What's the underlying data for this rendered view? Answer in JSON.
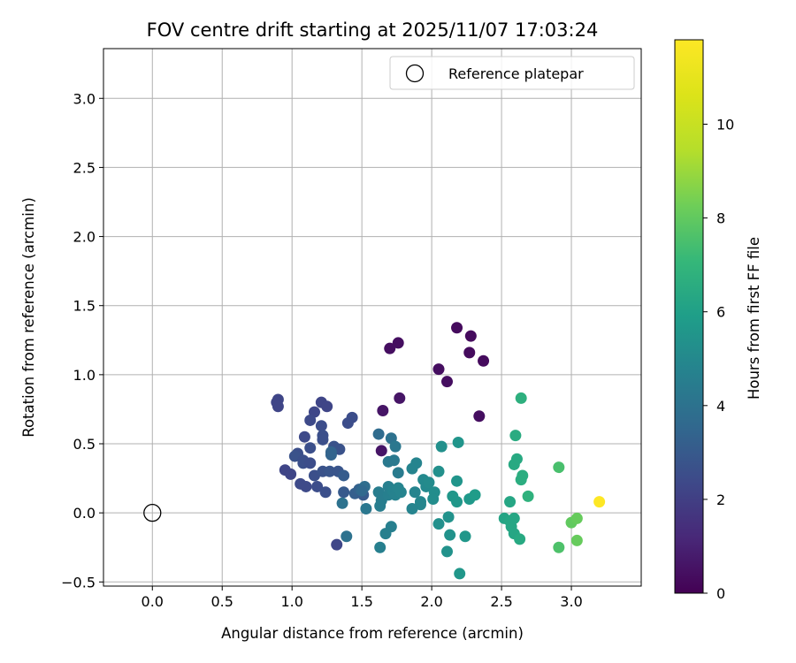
{
  "chart_data": {
    "type": "scatter",
    "title": "FOV centre drift starting at 2025/11/07 17:03:24",
    "xlabel": "Angular distance from reference (arcmin)",
    "ylabel": "Rotation from reference (arcmin)",
    "xlim": [
      -0.35,
      3.5
    ],
    "ylim": [
      -0.53,
      3.36
    ],
    "xticks": [
      0.0,
      0.5,
      1.0,
      1.5,
      2.0,
      2.5,
      3.0
    ],
    "xtick_labels": [
      "0.0",
      "0.5",
      "1.0",
      "1.5",
      "2.0",
      "2.5",
      "3.0"
    ],
    "yticks": [
      -0.5,
      0.0,
      0.5,
      1.0,
      1.5,
      2.0,
      2.5,
      3.0
    ],
    "ytick_labels": [
      "−0.5",
      "0.0",
      "0.5",
      "1.0",
      "1.5",
      "2.0",
      "2.5",
      "3.0"
    ],
    "grid": true,
    "legend": {
      "position": "top-right",
      "entries": [
        "Reference platepar"
      ]
    },
    "reference_point": {
      "x": 0.0,
      "y": 0.0,
      "label": "Reference platepar"
    },
    "colorbar": {
      "label": "Hours from first FF file",
      "range": [
        0,
        11.8
      ],
      "ticks": [
        0,
        2,
        4,
        6,
        8,
        10
      ],
      "tick_labels": [
        "0",
        "2",
        "4",
        "6",
        "8",
        "10"
      ],
      "colormap": "viridis"
    },
    "points": [
      {
        "x": 1.7,
        "y": 1.19,
        "c": 0.4
      },
      {
        "x": 1.76,
        "y": 1.23,
        "c": 0.4
      },
      {
        "x": 2.18,
        "y": 1.34,
        "c": 0.3
      },
      {
        "x": 2.28,
        "y": 1.28,
        "c": 0.3
      },
      {
        "x": 2.27,
        "y": 1.16,
        "c": 0.3
      },
      {
        "x": 2.37,
        "y": 1.1,
        "c": 0.3
      },
      {
        "x": 2.05,
        "y": 1.04,
        "c": 0.4
      },
      {
        "x": 2.11,
        "y": 0.95,
        "c": 0.4
      },
      {
        "x": 1.77,
        "y": 0.83,
        "c": 0.6
      },
      {
        "x": 1.65,
        "y": 0.74,
        "c": 0.6
      },
      {
        "x": 2.34,
        "y": 0.7,
        "c": 0.4
      },
      {
        "x": 1.64,
        "y": 0.45,
        "c": 0.6
      },
      {
        "x": 0.9,
        "y": 0.82,
        "c": 2.2
      },
      {
        "x": 0.89,
        "y": 0.8,
        "c": 2.2
      },
      {
        "x": 0.9,
        "y": 0.77,
        "c": 2.2
      },
      {
        "x": 1.21,
        "y": 0.8,
        "c": 2.2
      },
      {
        "x": 1.25,
        "y": 0.77,
        "c": 2.2
      },
      {
        "x": 1.16,
        "y": 0.73,
        "c": 2.3
      },
      {
        "x": 1.13,
        "y": 0.67,
        "c": 2.4
      },
      {
        "x": 1.21,
        "y": 0.63,
        "c": 2.5
      },
      {
        "x": 1.43,
        "y": 0.69,
        "c": 2.5
      },
      {
        "x": 1.4,
        "y": 0.65,
        "c": 2.5
      },
      {
        "x": 1.09,
        "y": 0.55,
        "c": 2.4
      },
      {
        "x": 1.22,
        "y": 0.56,
        "c": 2.6
      },
      {
        "x": 1.22,
        "y": 0.53,
        "c": 2.6
      },
      {
        "x": 1.3,
        "y": 0.48,
        "c": 2.7
      },
      {
        "x": 1.34,
        "y": 0.46,
        "c": 2.7
      },
      {
        "x": 1.13,
        "y": 0.47,
        "c": 2.6
      },
      {
        "x": 1.04,
        "y": 0.43,
        "c": 2.6
      },
      {
        "x": 1.02,
        "y": 0.41,
        "c": 2.7
      },
      {
        "x": 1.08,
        "y": 0.38,
        "c": 2.6
      },
      {
        "x": 1.08,
        "y": 0.36,
        "c": 2.6
      },
      {
        "x": 1.13,
        "y": 0.36,
        "c": 2.5
      },
      {
        "x": 0.95,
        "y": 0.31,
        "c": 2.2
      },
      {
        "x": 0.99,
        "y": 0.28,
        "c": 2.2
      },
      {
        "x": 1.16,
        "y": 0.27,
        "c": 2.6
      },
      {
        "x": 1.22,
        "y": 0.3,
        "c": 2.7
      },
      {
        "x": 1.27,
        "y": 0.3,
        "c": 2.8
      },
      {
        "x": 1.33,
        "y": 0.3,
        "c": 2.8
      },
      {
        "x": 1.06,
        "y": 0.21,
        "c": 2.4
      },
      {
        "x": 1.1,
        "y": 0.19,
        "c": 2.4
      },
      {
        "x": 1.18,
        "y": 0.19,
        "c": 2.5
      },
      {
        "x": 1.24,
        "y": 0.15,
        "c": 2.6
      },
      {
        "x": 1.32,
        "y": -0.23,
        "c": 2.3
      },
      {
        "x": 1.37,
        "y": 0.27,
        "c": 3.1
      },
      {
        "x": 1.37,
        "y": 0.15,
        "c": 3.0
      },
      {
        "x": 1.28,
        "y": 0.44,
        "c": 3.4
      },
      {
        "x": 1.28,
        "y": 0.42,
        "c": 3.4
      },
      {
        "x": 1.45,
        "y": 0.14,
        "c": 3.2
      },
      {
        "x": 1.48,
        "y": 0.17,
        "c": 3.3
      },
      {
        "x": 1.51,
        "y": 0.13,
        "c": 3.0
      },
      {
        "x": 1.52,
        "y": 0.19,
        "c": 3.8
      },
      {
        "x": 1.5,
        "y": 0.16,
        "c": 3.6
      },
      {
        "x": 1.36,
        "y": 0.07,
        "c": 4.0
      },
      {
        "x": 1.53,
        "y": 0.03,
        "c": 4.2
      },
      {
        "x": 1.39,
        "y": -0.17,
        "c": 4.0
      },
      {
        "x": 1.62,
        "y": 0.57,
        "c": 3.7
      },
      {
        "x": 1.71,
        "y": 0.54,
        "c": 4.0
      },
      {
        "x": 1.74,
        "y": 0.48,
        "c": 4.2
      },
      {
        "x": 1.69,
        "y": 0.37,
        "c": 4.3
      },
      {
        "x": 1.73,
        "y": 0.38,
        "c": 4.3
      },
      {
        "x": 1.76,
        "y": 0.29,
        "c": 4.4
      },
      {
        "x": 1.62,
        "y": 0.15,
        "c": 4.5
      },
      {
        "x": 1.64,
        "y": 0.09,
        "c": 4.5
      },
      {
        "x": 1.63,
        "y": 0.05,
        "c": 4.5
      },
      {
        "x": 1.69,
        "y": 0.19,
        "c": 4.6
      },
      {
        "x": 1.69,
        "y": 0.13,
        "c": 4.6
      },
      {
        "x": 1.72,
        "y": 0.16,
        "c": 4.7
      },
      {
        "x": 1.74,
        "y": 0.13,
        "c": 4.7
      },
      {
        "x": 1.76,
        "y": 0.18,
        "c": 4.8
      },
      {
        "x": 1.78,
        "y": 0.15,
        "c": 4.8
      },
      {
        "x": 1.71,
        "y": -0.1,
        "c": 4.6
      },
      {
        "x": 1.67,
        "y": -0.15,
        "c": 4.6
      },
      {
        "x": 1.63,
        "y": -0.25,
        "c": 4.6
      },
      {
        "x": 1.86,
        "y": 0.32,
        "c": 4.8
      },
      {
        "x": 1.89,
        "y": 0.36,
        "c": 4.8
      },
      {
        "x": 1.88,
        "y": 0.15,
        "c": 4.8
      },
      {
        "x": 1.92,
        "y": 0.08,
        "c": 4.9
      },
      {
        "x": 1.92,
        "y": 0.06,
        "c": 4.9
      },
      {
        "x": 1.86,
        "y": 0.03,
        "c": 4.8
      },
      {
        "x": 1.94,
        "y": 0.24,
        "c": 5.0
      },
      {
        "x": 1.96,
        "y": 0.19,
        "c": 5.0
      },
      {
        "x": 1.98,
        "y": 0.22,
        "c": 5.1
      },
      {
        "x": 2.02,
        "y": 0.15,
        "c": 5.2
      },
      {
        "x": 2.01,
        "y": 0.1,
        "c": 5.2
      },
      {
        "x": 2.05,
        "y": 0.3,
        "c": 5.3
      },
      {
        "x": 2.07,
        "y": 0.48,
        "c": 5.3
      },
      {
        "x": 2.19,
        "y": 0.51,
        "c": 5.5
      },
      {
        "x": 2.18,
        "y": 0.23,
        "c": 5.5
      },
      {
        "x": 2.15,
        "y": 0.12,
        "c": 5.6
      },
      {
        "x": 2.18,
        "y": 0.08,
        "c": 5.6
      },
      {
        "x": 2.05,
        "y": -0.08,
        "c": 5.3
      },
      {
        "x": 2.12,
        "y": -0.03,
        "c": 5.4
      },
      {
        "x": 2.13,
        "y": -0.16,
        "c": 5.4
      },
      {
        "x": 2.11,
        "y": -0.28,
        "c": 5.4
      },
      {
        "x": 2.24,
        "y": -0.17,
        "c": 5.6
      },
      {
        "x": 2.2,
        "y": -0.44,
        "c": 5.6
      },
      {
        "x": 2.27,
        "y": 0.1,
        "c": 5.7
      },
      {
        "x": 2.31,
        "y": 0.13,
        "c": 5.8
      },
      {
        "x": 2.52,
        "y": -0.04,
        "c": 6.2
      },
      {
        "x": 2.56,
        "y": -0.06,
        "c": 6.3
      },
      {
        "x": 2.57,
        "y": -0.1,
        "c": 6.3
      },
      {
        "x": 2.59,
        "y": -0.04,
        "c": 6.3
      },
      {
        "x": 2.59,
        "y": -0.15,
        "c": 6.3
      },
      {
        "x": 2.63,
        "y": -0.19,
        "c": 6.4
      },
      {
        "x": 2.56,
        "y": 0.08,
        "c": 6.3
      },
      {
        "x": 2.59,
        "y": 0.35,
        "c": 6.4
      },
      {
        "x": 2.61,
        "y": 0.39,
        "c": 6.4
      },
      {
        "x": 2.6,
        "y": 0.56,
        "c": 6.5
      },
      {
        "x": 2.64,
        "y": 0.83,
        "c": 6.7
      },
      {
        "x": 2.64,
        "y": 0.24,
        "c": 6.6
      },
      {
        "x": 2.65,
        "y": 0.27,
        "c": 6.6
      },
      {
        "x": 2.69,
        "y": 0.12,
        "c": 6.8
      },
      {
        "x": 2.91,
        "y": 0.33,
        "c": 7.5
      },
      {
        "x": 2.91,
        "y": -0.25,
        "c": 7.6
      },
      {
        "x": 3.0,
        "y": -0.07,
        "c": 8.0
      },
      {
        "x": 3.04,
        "y": -0.04,
        "c": 8.1
      },
      {
        "x": 3.04,
        "y": -0.2,
        "c": 8.1
      },
      {
        "x": 3.2,
        "y": 0.08,
        "c": 11.8
      }
    ]
  }
}
